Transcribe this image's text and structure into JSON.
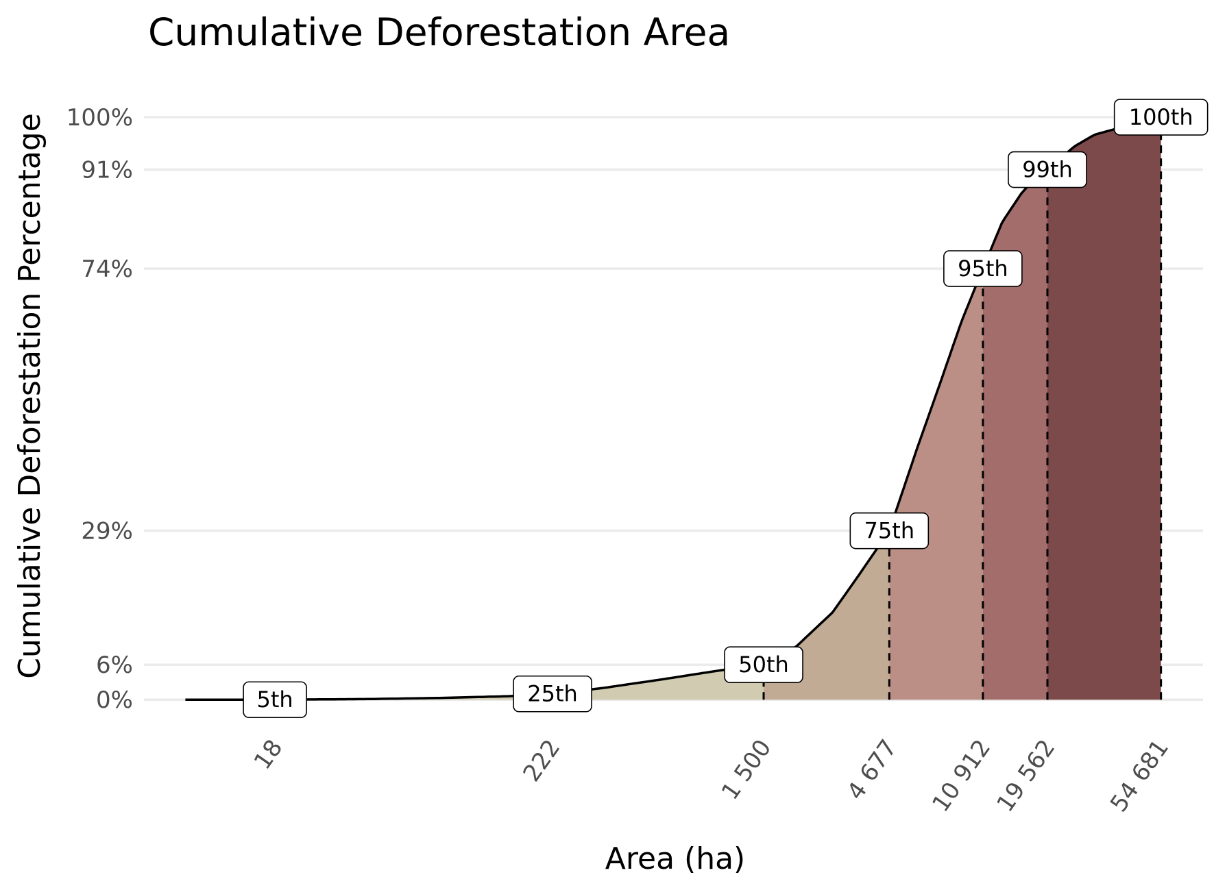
{
  "chart_data": {
    "type": "area",
    "title": "Cumulative Deforestation Area",
    "xlabel": "Area (ha)",
    "ylabel": "Cumulative Deforestation Percentage",
    "x_scale": "log10",
    "xlim": [
      5.5,
      80000
    ],
    "ylim": [
      -1.5,
      106
    ],
    "grid": "horizontal",
    "y_ticks": [
      {
        "value": 0,
        "label": "0%"
      },
      {
        "value": 6,
        "label": "6%"
      },
      {
        "value": 29,
        "label": "29%"
      },
      {
        "value": 74,
        "label": "74%"
      },
      {
        "value": 91,
        "label": "91%"
      },
      {
        "value": 100,
        "label": "100%"
      }
    ],
    "x_ticks": [
      {
        "value": 18,
        "label": "18"
      },
      {
        "value": 222,
        "label": "222"
      },
      {
        "value": 1500,
        "label": "1 500"
      },
      {
        "value": 4677,
        "label": "4 677"
      },
      {
        "value": 10912,
        "label": "10 912"
      },
      {
        "value": 19562,
        "label": "19 562"
      },
      {
        "value": 54681,
        "label": "54 681"
      }
    ],
    "curve": {
      "x": [
        8,
        18,
        40,
        80,
        150,
        222,
        350,
        600,
        1000,
        1500,
        2000,
        2800,
        3500,
        4677,
        6000,
        7500,
        9000,
        10912,
        13000,
        15500,
        17500,
        19562,
        25000,
        30000,
        40000,
        54681
      ],
      "y": [
        0,
        0,
        0.1,
        0.3,
        0.6,
        1.0,
        2.0,
        3.5,
        5.0,
        6.0,
        9.0,
        15.0,
        21.0,
        29.0,
        43.0,
        55.0,
        65.0,
        74.0,
        82.0,
        87.0,
        89.5,
        91.0,
        95.0,
        97.0,
        98.5,
        100.0
      ]
    },
    "percentiles": [
      {
        "label": "5th",
        "x": 18,
        "y": 0
      },
      {
        "label": "25th",
        "x": 222,
        "y": 1
      },
      {
        "label": "50th",
        "x": 1500,
        "y": 6
      },
      {
        "label": "75th",
        "x": 4677,
        "y": 29
      },
      {
        "label": "95th",
        "x": 10912,
        "y": 74
      },
      {
        "label": "99th",
        "x": 19562,
        "y": 91
      },
      {
        "label": "100th",
        "x": 54681,
        "y": 100
      }
    ],
    "band_colors": [
      "#d0cbb1",
      "#c2ab94",
      "#bb8e86",
      "#a36d6b",
      "#7d4a4b"
    ]
  }
}
